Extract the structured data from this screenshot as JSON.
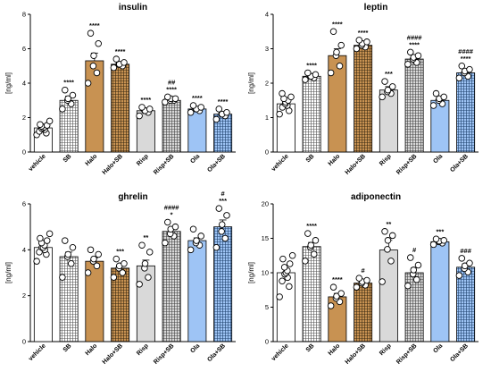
{
  "colors": {
    "white": "#ffffff",
    "grid": "#ffffff",
    "halo": "#c89252",
    "risp": "#d9d9d9",
    "ola": "#9ec4f5",
    "border": "#000000"
  },
  "chart_data": [
    {
      "type": "bar",
      "title": "insulin",
      "ylabel": "[ng/ml]",
      "ylim": [
        0,
        8
      ],
      "yticks": [
        0,
        2,
        4,
        6,
        8
      ],
      "categories": [
        "vehicle",
        "SB",
        "Halo",
        "Halo+SB",
        "Risp",
        "Risp+SB",
        "Ola",
        "Ola+SB"
      ],
      "values": [
        1.4,
        3.0,
        5.3,
        5.1,
        2.4,
        3.0,
        2.5,
        2.2
      ],
      "errors": [
        0.15,
        0.25,
        0.45,
        0.15,
        0.1,
        0.1,
        0.1,
        0.12
      ],
      "fills": [
        "white",
        "grid",
        "halo",
        "halo-grid",
        "risp",
        "risp-grid",
        "ola",
        "ola-grid"
      ],
      "points": [
        [
          1.0,
          1.1,
          1.2,
          1.3,
          1.35,
          1.4,
          1.45,
          1.5,
          1.55,
          1.6,
          1.8
        ],
        [
          2.5,
          2.8,
          3.0,
          3.1,
          3.3,
          3.6
        ],
        [
          4.0,
          4.6,
          5.0,
          5.6,
          6.3,
          6.9
        ],
        [
          4.9,
          5.0,
          5.1,
          5.1,
          5.2,
          5.4
        ],
        [
          2.1,
          2.3,
          2.4,
          2.4,
          2.5,
          2.6
        ],
        [
          2.9,
          3.0,
          3.0,
          3.1,
          3.1,
          3.2
        ],
        [
          2.3,
          2.4,
          2.5,
          2.5,
          2.6,
          2.7
        ],
        [
          1.9,
          2.1,
          2.2,
          2.2,
          2.3,
          2.5
        ]
      ],
      "sig_lines": [
        [
          "****"
        ],
        [
          "****"
        ],
        [
          "****"
        ],
        [
          "##",
          "****"
        ],
        [
          "****"
        ],
        [
          "****"
        ],
        [
          "****"
        ]
      ],
      "sig_for": [
        1,
        2,
        3,
        5,
        4,
        6,
        7
      ],
      "sig": [
        "",
        "****",
        "****",
        "****",
        "****",
        "##\n****",
        "****",
        "****"
      ]
    },
    {
      "type": "bar",
      "title": "leptin",
      "ylabel": "[ng/ml]",
      "ylim": [
        0,
        4
      ],
      "yticks": [
        0,
        1,
        2,
        3,
        4
      ],
      "categories": [
        "vehicle",
        "SB",
        "Halo",
        "Halo+SB",
        "Risp",
        "Risp+SB",
        "Ola",
        "Ola+SB"
      ],
      "values": [
        1.4,
        2.2,
        2.8,
        3.1,
        1.8,
        2.7,
        1.5,
        2.3
      ],
      "errors": [
        0.07,
        0.05,
        0.2,
        0.05,
        0.1,
        0.06,
        0.07,
        0.07
      ],
      "fills": [
        "white",
        "grid",
        "halo",
        "halo-grid",
        "risp",
        "risp-grid",
        "ola",
        "ola-grid"
      ],
      "points": [
        [
          1.1,
          1.2,
          1.3,
          1.35,
          1.4,
          1.45,
          1.5,
          1.55,
          1.6,
          1.7
        ],
        [
          2.1,
          2.15,
          2.2,
          2.2,
          2.25,
          2.3
        ],
        [
          2.3,
          2.5,
          2.8,
          2.9,
          3.1,
          3.5
        ],
        [
          3.0,
          3.05,
          3.1,
          3.15,
          3.2,
          3.25
        ],
        [
          1.6,
          1.7,
          1.75,
          1.8,
          1.9,
          2.05
        ],
        [
          2.55,
          2.6,
          2.7,
          2.75,
          2.8,
          2.9
        ],
        [
          1.35,
          1.4,
          1.5,
          1.55,
          1.6,
          1.7
        ],
        [
          2.15,
          2.2,
          2.3,
          2.35,
          2.4,
          2.5
        ]
      ],
      "sig": [
        "",
        "****",
        "****",
        "****",
        "***",
        "####\n****",
        "",
        "####\n****"
      ]
    },
    {
      "type": "bar",
      "title": "ghrelin",
      "ylabel": "[ng/ml]",
      "ylim": [
        0,
        6
      ],
      "yticks": [
        0,
        2,
        4,
        6
      ],
      "categories": [
        "vehicle",
        "SB",
        "Halo",
        "Halo+SB",
        "Risp",
        "Risp+SB",
        "Ola",
        "Ola+SB"
      ],
      "values": [
        4.1,
        3.7,
        3.5,
        3.2,
        3.3,
        4.8,
        4.4,
        5.0
      ],
      "errors": [
        0.15,
        0.2,
        0.15,
        0.12,
        0.25,
        0.15,
        0.12,
        0.3
      ],
      "fills": [
        "white",
        "grid",
        "halo",
        "halo-grid",
        "risp",
        "risp-grid",
        "ola",
        "ola-grid"
      ],
      "points": [
        [
          3.5,
          3.8,
          3.9,
          4.0,
          4.1,
          4.1,
          4.2,
          4.3,
          4.4,
          4.5,
          4.7
        ],
        [
          2.8,
          3.4,
          3.7,
          3.8,
          4.1,
          4.4
        ],
        [
          3.0,
          3.3,
          3.5,
          3.6,
          3.8,
          4.0
        ],
        [
          2.8,
          3.0,
          3.2,
          3.3,
          3.4,
          3.6
        ],
        [
          2.5,
          2.8,
          3.2,
          3.4,
          3.9,
          4.2
        ],
        [
          4.3,
          4.6,
          4.7,
          4.9,
          5.0,
          5.2
        ],
        [
          4.0,
          4.2,
          4.3,
          4.4,
          4.6,
          4.9
        ],
        [
          4.1,
          4.5,
          4.8,
          5.1,
          5.5,
          5.8
        ]
      ],
      "sig": [
        "",
        "",
        "",
        "***",
        "**",
        "####\n*",
        "",
        "#\n***"
      ]
    },
    {
      "type": "bar",
      "title": "adiponectin",
      "ylabel": "[ng/ml]",
      "ylim": [
        0,
        20
      ],
      "yticks": [
        0,
        5,
        10,
        15,
        20
      ],
      "categories": [
        "vehicle",
        "SB",
        "Halo",
        "Halo+SB",
        "Risp",
        "Risp+SB",
        "Ola",
        "Ola+SB"
      ],
      "values": [
        10.0,
        13.8,
        6.5,
        8.5,
        13.3,
        10.0,
        14.5,
        10.8
      ],
      "errors": [
        0.6,
        0.6,
        0.5,
        0.3,
        1.4,
        0.7,
        0.2,
        0.5
      ],
      "fills": [
        "white",
        "grid",
        "halo",
        "halo-grid",
        "risp",
        "risp-grid",
        "ola",
        "ola-grid"
      ],
      "points": [
        [
          6.5,
          8.0,
          8.8,
          9.3,
          9.8,
          10.0,
          10.3,
          10.8,
          11.3,
          12.0,
          12.5
        ],
        [
          11.7,
          12.7,
          13.7,
          14.0,
          14.7,
          15.7
        ],
        [
          5.2,
          5.8,
          6.3,
          6.6,
          7.0,
          7.9
        ],
        [
          7.9,
          8.2,
          8.5,
          8.7,
          8.9,
          9.2
        ],
        [
          8.7,
          11.7,
          13.4,
          14.7,
          15.4,
          16.0
        ],
        [
          8.1,
          9.0,
          9.8,
          10.4,
          11.1,
          12.2
        ],
        [
          14.1,
          14.3,
          14.5,
          14.6,
          14.7,
          14.9
        ],
        [
          9.6,
          10.1,
          10.6,
          11.0,
          11.4,
          12.1
        ]
      ],
      "sig": [
        "",
        "****",
        "****",
        "#",
        "**",
        "#",
        "***",
        "###"
      ]
    }
  ]
}
